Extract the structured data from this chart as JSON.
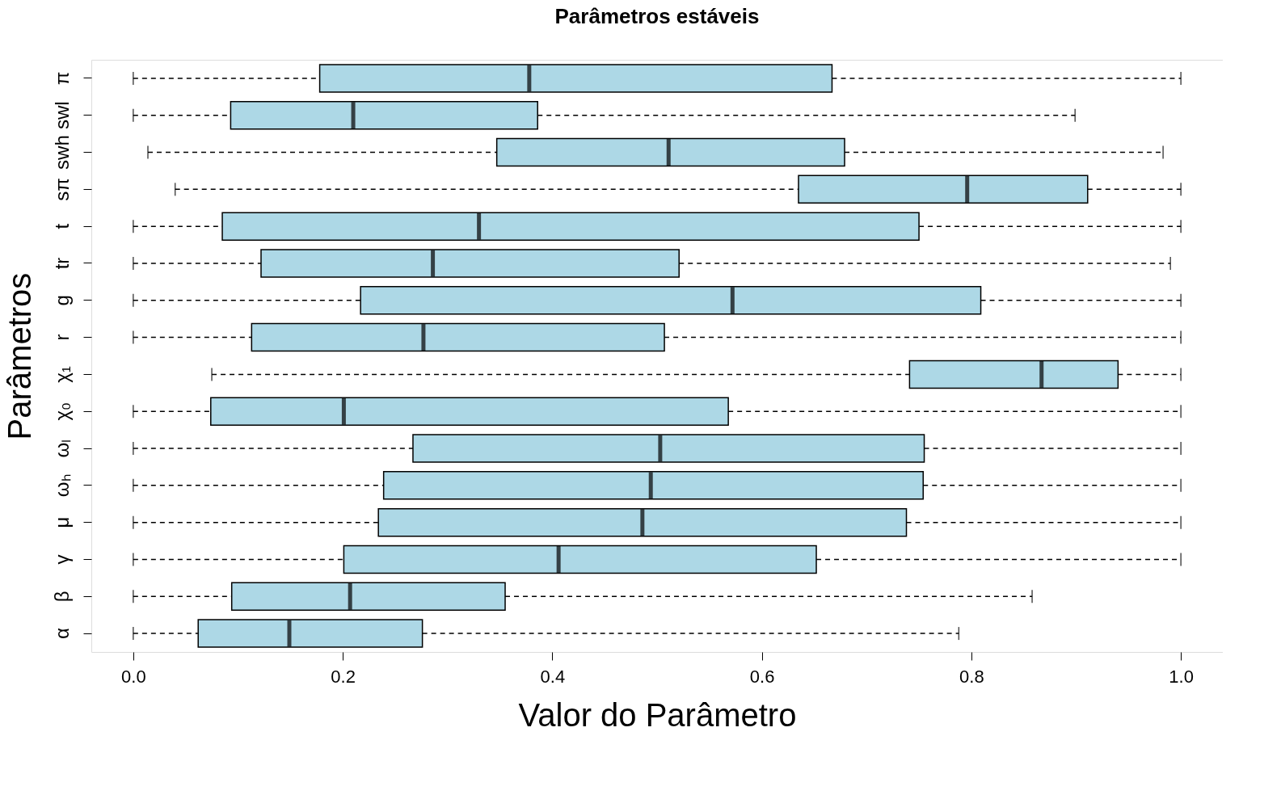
{
  "chart_data": {
    "type": "box",
    "orientation": "horizontal",
    "title": "Parâmetros estáveis",
    "xlabel": "Valor do Parâmetro",
    "ylabel": "Parâmetros",
    "color": "#add8e6",
    "line_style": "dashed",
    "grid": false,
    "categories": [
      "π",
      "swl",
      "swh",
      "sπ",
      "t",
      "tr",
      "g",
      "r",
      "χ₁",
      "χ₀",
      "ωₗ",
      "ωₕ",
      "μ",
      "γ",
      "β",
      "α"
    ],
    "xlim": [
      -0.04,
      1.04
    ],
    "xticks": [
      {
        "value": 0,
        "label": "0.0"
      },
      {
        "value": 0.2,
        "label": "0.2"
      },
      {
        "value": 0.4,
        "label": "0.4"
      },
      {
        "value": 0.6,
        "label": "0.6"
      },
      {
        "value": 0.8,
        "label": "0.8"
      },
      {
        "value": 1,
        "label": "1.0"
      }
    ],
    "boxes": [
      {
        "low": 0.0,
        "q1": 0.178,
        "median": 0.378,
        "q3": 0.667,
        "high": 1.0
      },
      {
        "low": 0.0,
        "q1": 0.093,
        "median": 0.21,
        "q3": 0.386,
        "high": 0.899
      },
      {
        "low": 0.014,
        "q1": 0.347,
        "median": 0.511,
        "q3": 0.679,
        "high": 0.983
      },
      {
        "low": 0.04,
        "q1": 0.635,
        "median": 0.796,
        "q3": 0.911,
        "high": 1.0
      },
      {
        "low": 0.0,
        "q1": 0.085,
        "median": 0.33,
        "q3": 0.75,
        "high": 1.0
      },
      {
        "low": 0.0,
        "q1": 0.122,
        "median": 0.286,
        "q3": 0.521,
        "high": 0.99
      },
      {
        "low": 0.0,
        "q1": 0.217,
        "median": 0.572,
        "q3": 0.809,
        "high": 1.0
      },
      {
        "low": 0.0,
        "q1": 0.113,
        "median": 0.277,
        "q3": 0.507,
        "high": 1.0
      },
      {
        "low": 0.075,
        "q1": 0.741,
        "median": 0.867,
        "q3": 0.94,
        "high": 1.0
      },
      {
        "low": 0.0,
        "q1": 0.074,
        "median": 0.201,
        "q3": 0.568,
        "high": 1.0
      },
      {
        "low": 0.0,
        "q1": 0.267,
        "median": 0.503,
        "q3": 0.755,
        "high": 1.0
      },
      {
        "low": 0.0,
        "q1": 0.239,
        "median": 0.494,
        "q3": 0.754,
        "high": 1.0
      },
      {
        "low": 0.0,
        "q1": 0.234,
        "median": 0.486,
        "q3": 0.738,
        "high": 1.0
      },
      {
        "low": 0.0,
        "q1": 0.201,
        "median": 0.406,
        "q3": 0.652,
        "high": 1.0
      },
      {
        "low": 0.0,
        "q1": 0.094,
        "median": 0.207,
        "q3": 0.355,
        "high": 0.858
      },
      {
        "low": 0.0,
        "q1": 0.062,
        "median": 0.149,
        "q3": 0.276,
        "high": 0.788
      }
    ]
  }
}
